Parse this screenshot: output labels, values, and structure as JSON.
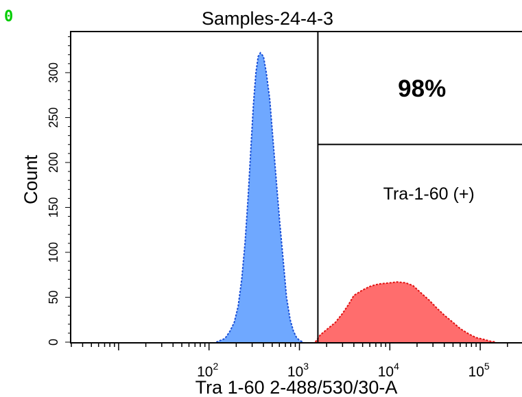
{
  "panel_marker": "0",
  "chart_data": {
    "type": "area",
    "title": "Samples-24-4-3",
    "xlabel": "Tra 1-60 2-488/530/30-A",
    "ylabel": "Count",
    "x_scale": "log",
    "xlim": [
      3,
      300000
    ],
    "ylim": [
      0,
      345
    ],
    "y_ticks": [
      0,
      50,
      100,
      150,
      200,
      250,
      300
    ],
    "y_tick_labels": [
      "0",
      "50",
      "100",
      "150",
      "200",
      "250",
      "300"
    ],
    "x_ticks": [
      {
        "value": 100,
        "base": "10",
        "exp": "2"
      },
      {
        "value": 1000,
        "base": "10",
        "exp": "3"
      },
      {
        "value": 10000,
        "base": "10",
        "exp": "4"
      },
      {
        "value": 100000,
        "base": "10",
        "exp": "5"
      }
    ],
    "gate": {
      "x_start": 1600,
      "percent_label": "98%",
      "name_label": "Tra-1-60 (+)"
    },
    "series": [
      {
        "color": "#6fa8ff",
        "edge_color": "#1a4fd6",
        "points": [
          [
            120,
            0
          ],
          [
            150,
            4
          ],
          [
            170,
            12
          ],
          [
            190,
            22
          ],
          [
            210,
            40
          ],
          [
            230,
            70
          ],
          [
            250,
            110
          ],
          [
            270,
            160
          ],
          [
            290,
            215
          ],
          [
            310,
            265
          ],
          [
            330,
            300
          ],
          [
            350,
            318
          ],
          [
            370,
            322
          ],
          [
            400,
            318
          ],
          [
            430,
            300
          ],
          [
            470,
            270
          ],
          [
            510,
            225
          ],
          [
            560,
            175
          ],
          [
            610,
            130
          ],
          [
            670,
            85
          ],
          [
            720,
            50
          ],
          [
            790,
            25
          ],
          [
            860,
            12
          ],
          [
            930,
            5
          ],
          [
            1000,
            2
          ],
          [
            1100,
            0
          ]
        ]
      },
      {
        "color": "#ff6d6d",
        "edge_color": "#e01010",
        "points": [
          [
            1500,
            0
          ],
          [
            1700,
            8
          ],
          [
            2000,
            14
          ],
          [
            2500,
            22
          ],
          [
            3000,
            32
          ],
          [
            3500,
            42
          ],
          [
            4000,
            52
          ],
          [
            5000,
            58
          ],
          [
            6000,
            62
          ],
          [
            7000,
            64
          ],
          [
            8000,
            65
          ],
          [
            10000,
            66
          ],
          [
            12000,
            67
          ],
          [
            15000,
            66
          ],
          [
            18000,
            63
          ],
          [
            22000,
            55
          ],
          [
            27000,
            47
          ],
          [
            33000,
            38
          ],
          [
            40000,
            30
          ],
          [
            50000,
            22
          ],
          [
            60000,
            15
          ],
          [
            75000,
            9
          ],
          [
            90000,
            5
          ],
          [
            110000,
            3
          ],
          [
            130000,
            1
          ],
          [
            150000,
            0
          ]
        ]
      }
    ]
  }
}
